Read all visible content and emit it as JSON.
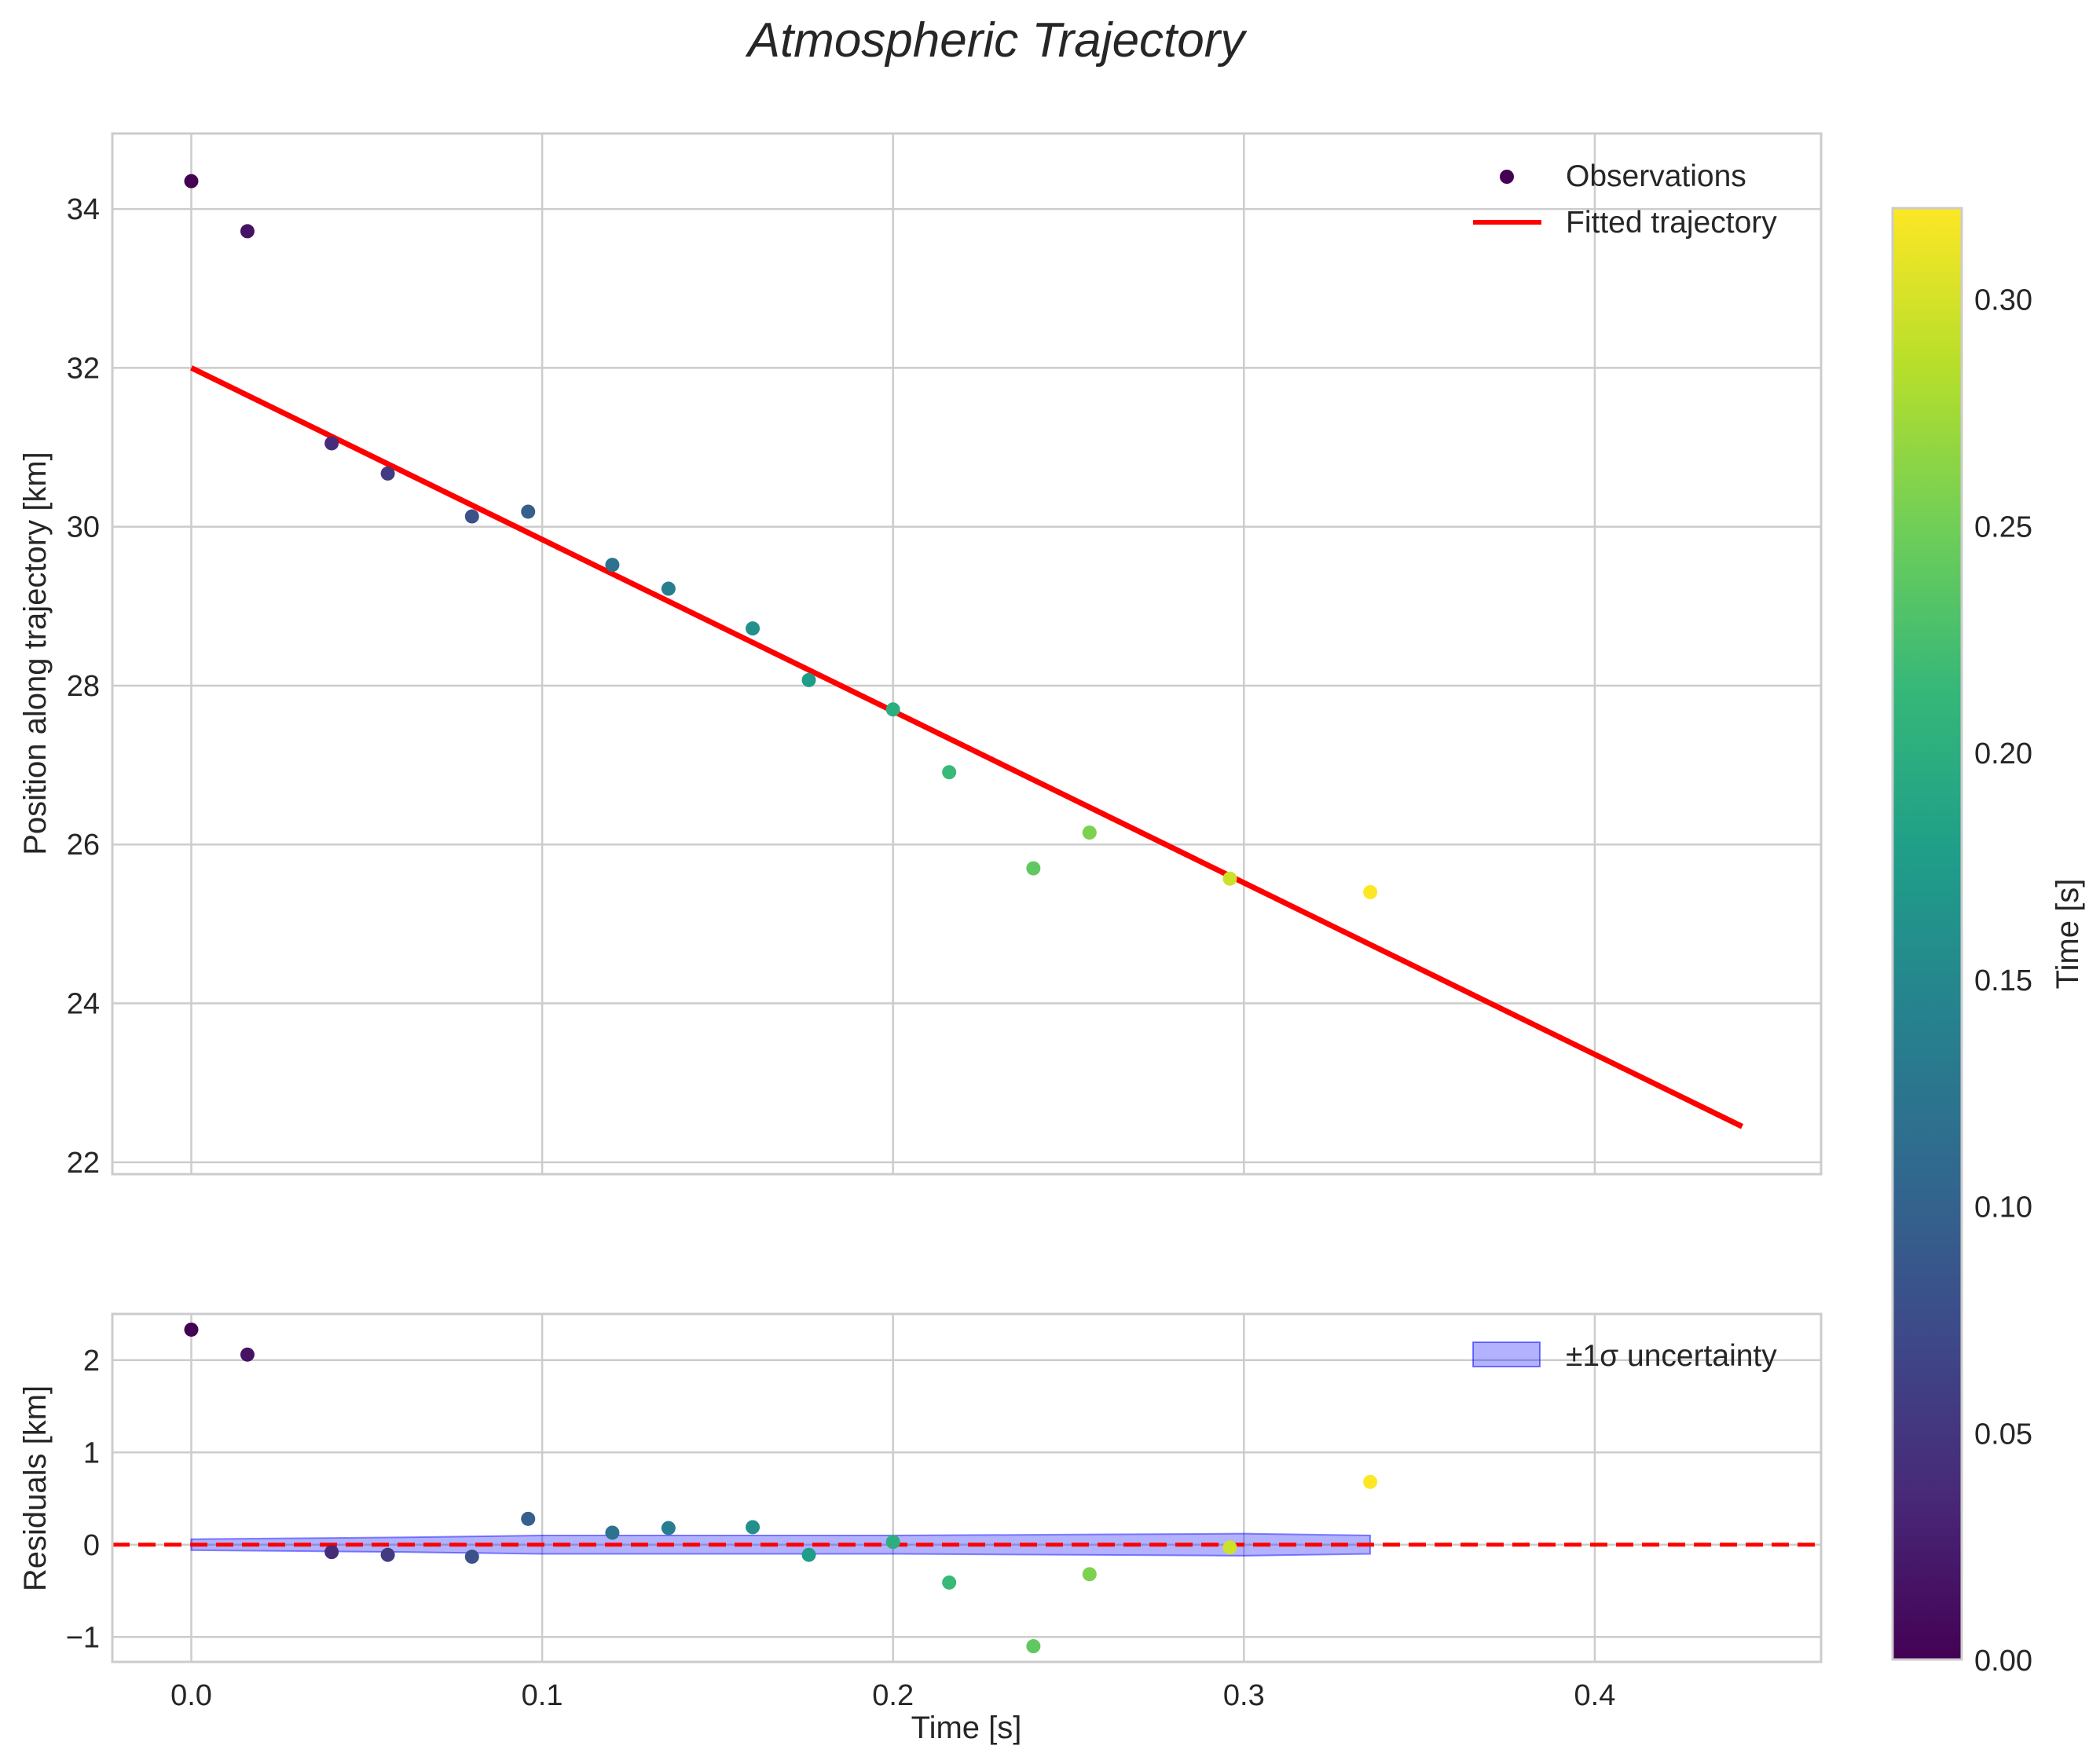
{
  "chart_data": {
    "type": "scatter",
    "title": "Atmospheric Trajectory",
    "panels": [
      {
        "id": "main",
        "xlabel": "",
        "ylabel": "Position along trajectory [km]",
        "xlim": [
          -0.0225,
          0.4645
        ],
        "ylim": [
          21.85,
          34.95
        ],
        "xticks": [
          0.0,
          0.1,
          0.2,
          0.3,
          0.4
        ],
        "yticks": [
          22,
          24,
          26,
          28,
          30,
          32,
          34
        ],
        "ytick_labels": [
          "22",
          "24",
          "26",
          "28",
          "30",
          "32",
          "34"
        ],
        "grid": true,
        "legend_position": "top-right",
        "legend": [
          {
            "label": "Observations",
            "kind": "marker",
            "color": "#440154"
          },
          {
            "label": "Fitted trajectory",
            "kind": "line",
            "color": "#ff0000"
          }
        ],
        "series": [
          {
            "name": "Observations",
            "kind": "scatter",
            "x": [
              0.0,
              0.016,
              0.04,
              0.056,
              0.08,
              0.096,
              0.12,
              0.136,
              0.16,
              0.176,
              0.2,
              0.216,
              0.24,
              0.256,
              0.296,
              0.336
            ],
            "y": [
              34.35,
              33.72,
              31.05,
              30.67,
              30.13,
              30.19,
              29.52,
              29.22,
              28.72,
              28.07,
              27.7,
              26.91,
              25.7,
              26.15,
              25.57,
              25.4
            ],
            "color_by": "x"
          },
          {
            "name": "Fitted trajectory",
            "kind": "line",
            "x": [
              0.0,
              0.442
            ],
            "y": [
              32.0,
              22.45
            ],
            "color": "#ff0000"
          }
        ]
      },
      {
        "id": "residuals",
        "xlabel": "Time [s]",
        "ylabel": "Residuals [km]",
        "xlim": [
          -0.0225,
          0.4645
        ],
        "ylim": [
          -1.27,
          2.5
        ],
        "xticks": [
          0.0,
          0.1,
          0.2,
          0.3,
          0.4
        ],
        "xtick_labels": [
          "0.0",
          "0.1",
          "0.2",
          "0.3",
          "0.4"
        ],
        "yticks": [
          -1,
          0,
          1,
          2
        ],
        "ytick_labels": [
          "−1",
          "0",
          "1",
          "2"
        ],
        "grid": true,
        "legend_position": "top-right",
        "legend": [
          {
            "label": "±1σ uncertainty",
            "kind": "patch",
            "color": "#0000ff"
          }
        ],
        "series": [
          {
            "name": "Residuals",
            "kind": "scatter",
            "x": [
              0.0,
              0.016,
              0.04,
              0.056,
              0.08,
              0.096,
              0.12,
              0.136,
              0.16,
              0.176,
              0.2,
              0.216,
              0.24,
              0.256,
              0.296,
              0.336
            ],
            "y": [
              2.33,
              2.06,
              -0.08,
              -0.11,
              -0.13,
              0.28,
              0.13,
              0.18,
              0.19,
              -0.11,
              0.03,
              -0.41,
              -1.1,
              -0.32,
              -0.03,
              0.68
            ],
            "color_by": "x"
          },
          {
            "name": "±1σ uncertainty",
            "kind": "band",
            "x": [
              0.0,
              0.06,
              0.1,
              0.2,
              0.3,
              0.336
            ],
            "lower": [
              -0.06,
              -0.08,
              -0.1,
              -0.1,
              -0.12,
              -0.1
            ],
            "upper": [
              0.06,
              0.08,
              0.1,
              0.1,
              0.12,
              0.1
            ],
            "color": "#0000ff"
          },
          {
            "name": "Zero line",
            "kind": "hline",
            "y": 0,
            "color": "#ff0000",
            "style": "dashed"
          }
        ]
      }
    ],
    "colorbar": {
      "label": "Time [s]",
      "range": [
        0.0,
        0.32
      ],
      "ticks": [
        0.0,
        0.05,
        0.1,
        0.15,
        0.2,
        0.25,
        0.3
      ],
      "tick_labels": [
        "0.00",
        "0.05",
        "0.10",
        "0.15",
        "0.20",
        "0.25",
        "0.30"
      ],
      "colormap": "viridis",
      "colormap_stops": [
        "#440154",
        "#482878",
        "#3e4989",
        "#31688e",
        "#26828e",
        "#1f9e89",
        "#35b779",
        "#6ece58",
        "#b5de2b",
        "#fde725"
      ]
    }
  }
}
